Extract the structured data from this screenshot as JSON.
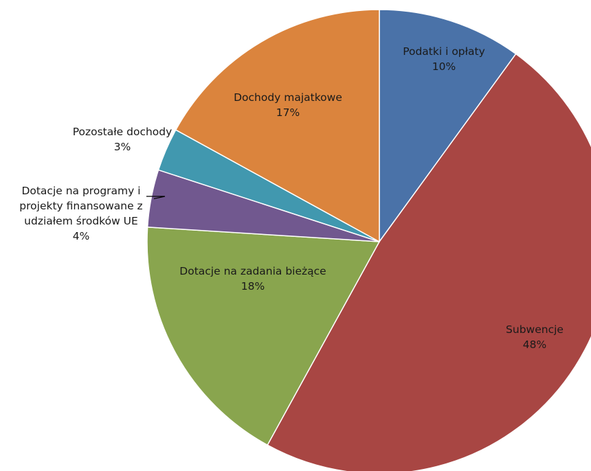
{
  "chart_data": {
    "type": "pie",
    "title": "",
    "slices": [
      {
        "label": [
          "Podatki i opłaty"
        ],
        "value": 10,
        "pct": "10%",
        "color": "#4a72a8"
      },
      {
        "label": [
          "Subwencje"
        ],
        "value": 48,
        "pct": "48%",
        "color": "#a84643"
      },
      {
        "label": [
          "Dotacje na zadania bieżące"
        ],
        "value": 18,
        "pct": "18%",
        "color": "#89a54e"
      },
      {
        "label": [
          "Dotacje na programy i",
          "projekty finansowane z",
          "udziałem środków UE"
        ],
        "value": 4,
        "pct": "4%",
        "color": "#71588f"
      },
      {
        "label": [
          "Pozostałe dochody"
        ],
        "value": 3,
        "pct": "3%",
        "color": "#4198af"
      },
      {
        "label": [
          "Dochody majatkowe"
        ],
        "value": 17,
        "pct": "17%",
        "color": "#db843d"
      }
    ]
  }
}
